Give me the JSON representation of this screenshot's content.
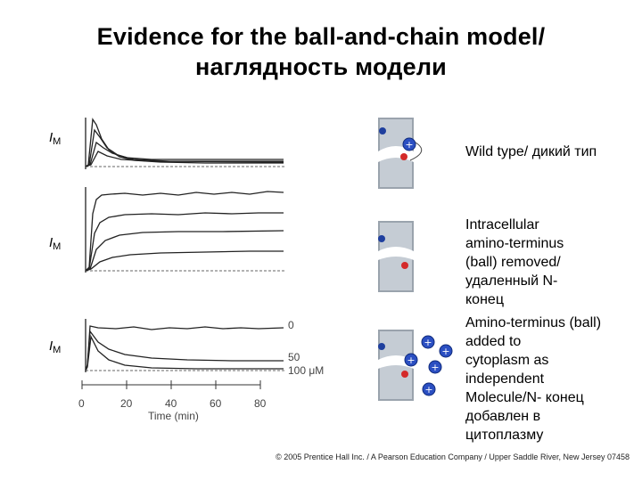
{
  "title": {
    "line1": "Evidence for the ball-and-chain model/",
    "line2": "наглядность модели"
  },
  "panels": [
    {
      "current_label": "I",
      "current_sub": "M",
      "description": "Wild type/ дикий тип"
    },
    {
      "current_label": "I",
      "current_sub": "M",
      "description_lines": [
        "Intracellular",
        "amino-terminus",
        "(ball) removed/",
        "удаленный N-",
        "конец"
      ]
    },
    {
      "current_label": "I",
      "current_sub": "M",
      "description_lines": [
        "Amino-terminus (ball)",
        "added to",
        "cytoplasm as",
        "independent",
        "Molecule/N- конец",
        "добавлен в",
        "цитоплазму"
      ]
    }
  ],
  "concentrations": [
    "0",
    "50",
    "100 μM"
  ],
  "time_axis": {
    "ticks": [
      "0",
      "20",
      "40",
      "60",
      "80"
    ],
    "label": "Time (min)"
  },
  "copyright": "© 2005 Prentice Hall Inc. / A Pearson Education Company / Upper Saddle River, New Jersey 07458"
}
